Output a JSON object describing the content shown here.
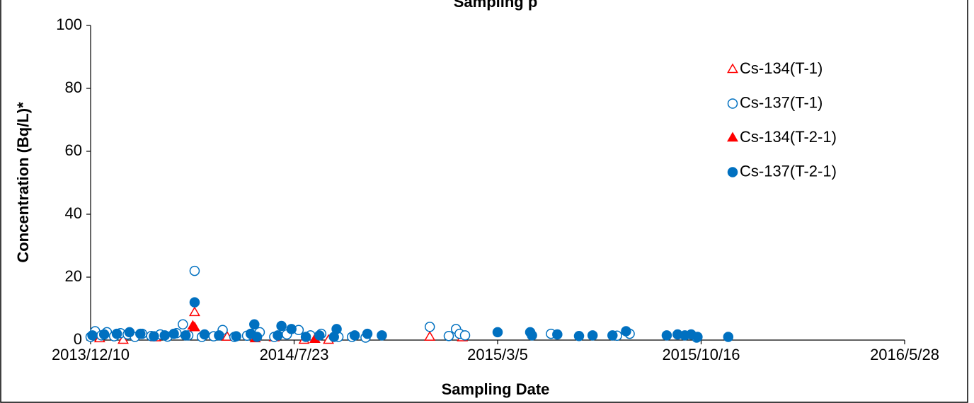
{
  "chart_data": {
    "type": "scatter",
    "title": "Sampling p",
    "x_label": "Sampling Date",
    "y_label": "Concentration (Bq/L)*",
    "xlim": [
      "2013/12/10",
      "2016/5/28"
    ],
    "xticks": [
      "2013/12/10",
      "2014/7/23",
      "2015/3/5",
      "2015/10/16",
      "2016/5/28"
    ],
    "ylim": [
      0,
      100
    ],
    "yticks": [
      0,
      20,
      40,
      60,
      80,
      100
    ],
    "grid": false,
    "legend": "upper right",
    "series": [
      {
        "name": "Cs-134(T-1)",
        "color": "#ff0000",
        "marker": "triangle",
        "filled": false,
        "x": [
          "2013/12/20",
          "2014/1/15",
          "2014/2/20",
          "2014/4/4",
          "2014/5/10",
          "2014/7/1",
          "2014/8/3",
          "2014/8/30",
          "2014/12/20",
          "2015/1/25"
        ],
        "values": [
          0.5,
          0,
          0.8,
          8.8,
          1,
          0.8,
          0,
          0,
          1,
          0.8
        ]
      },
      {
        "name": "Cs-137(T-1)",
        "color": "#0070c0",
        "marker": "circle",
        "filled": false,
        "x": [
          "2013/12/10",
          "2013/12/15",
          "2013/12/22",
          "2013/12/28",
          "2014/1/5",
          "2014/1/12",
          "2014/1/20",
          "2014/1/28",
          "2014/2/5",
          "2014/2/15",
          "2014/2/25",
          "2014/3/5",
          "2014/3/15",
          "2014/3/22",
          "2014/3/28",
          "2014/4/4",
          "2014/4/12",
          "2014/4/25",
          "2014/5/5",
          "2014/5/18",
          "2014/6/1",
          "2014/6/15",
          "2014/7/1",
          "2014/7/15",
          "2014/7/28",
          "2014/8/10",
          "2014/8/22",
          "2014/9/10",
          "2014/9/25",
          "2014/10/10",
          "2014/12/20",
          "2015/1/10",
          "2015/1/18",
          "2015/1/22",
          "2015/1/28",
          "2015/5/3",
          "2015/7/15",
          "2015/7/29",
          "2015/10/11"
        ],
        "values": [
          1.0,
          2.8,
          1.5,
          2.5,
          1.2,
          2.2,
          1.8,
          1.0,
          2.0,
          1.3,
          1.8,
          1.1,
          2.2,
          5.0,
          1.5,
          22,
          1.0,
          1.2,
          3.2,
          1.0,
          1.4,
          2.5,
          1.0,
          1.8,
          3.2,
          1.5,
          2.0,
          1.0,
          1.0,
          0.8,
          4.2,
          1.3,
          3.5,
          2.0,
          1.5,
          2.0,
          1.4,
          2.0,
          0.8
        ]
      },
      {
        "name": "Cs-134(T-2-1)",
        "color": "#ff0000",
        "marker": "triangle",
        "filled": true,
        "x": [
          "2014/4/2",
          "2014/4/4",
          "2014/6/10",
          "2014/8/15"
        ],
        "values": [
          4.5,
          4.0,
          0.5,
          0.3
        ]
      },
      {
        "name": "Cs-137(T-2-1)",
        "color": "#0070c0",
        "marker": "circle",
        "filled": true,
        "x": [
          "2013/12/12",
          "2013/12/25",
          "2014/1/8",
          "2014/1/22",
          "2014/2/3",
          "2014/2/18",
          "2014/3/2",
          "2014/3/12",
          "2014/3/25",
          "2014/4/4",
          "2014/4/15",
          "2014/5/1",
          "2014/5/20",
          "2014/6/5",
          "2014/6/9",
          "2014/6/12",
          "2014/7/5",
          "2014/7/9",
          "2014/7/20",
          "2014/8/5",
          "2014/8/20",
          "2014/9/5",
          "2014/9/8",
          "2014/9/28",
          "2014/10/12",
          "2014/10/28",
          "2015/3/5",
          "2015/4/10",
          "2015/4/12",
          "2015/5/10",
          "2015/6/3",
          "2015/6/18",
          "2015/7/10",
          "2015/7/25",
          "2015/9/8",
          "2015/9/20",
          "2015/9/28",
          "2015/10/5",
          "2015/10/12",
          "2015/11/15"
        ],
        "values": [
          1.5,
          1.8,
          2.0,
          2.5,
          2.0,
          1.2,
          1.5,
          2.0,
          1.5,
          12,
          1.8,
          1.5,
          1.2,
          2.0,
          5.0,
          1.0,
          1.5,
          4.5,
          3.5,
          1.0,
          1.5,
          1.0,
          3.5,
          1.5,
          2.0,
          1.5,
          2.5,
          2.5,
          1.5,
          1.8,
          1.3,
          1.5,
          1.5,
          2.8,
          1.5,
          1.8,
          1.5,
          1.8,
          1.0,
          1.0
        ]
      }
    ]
  }
}
